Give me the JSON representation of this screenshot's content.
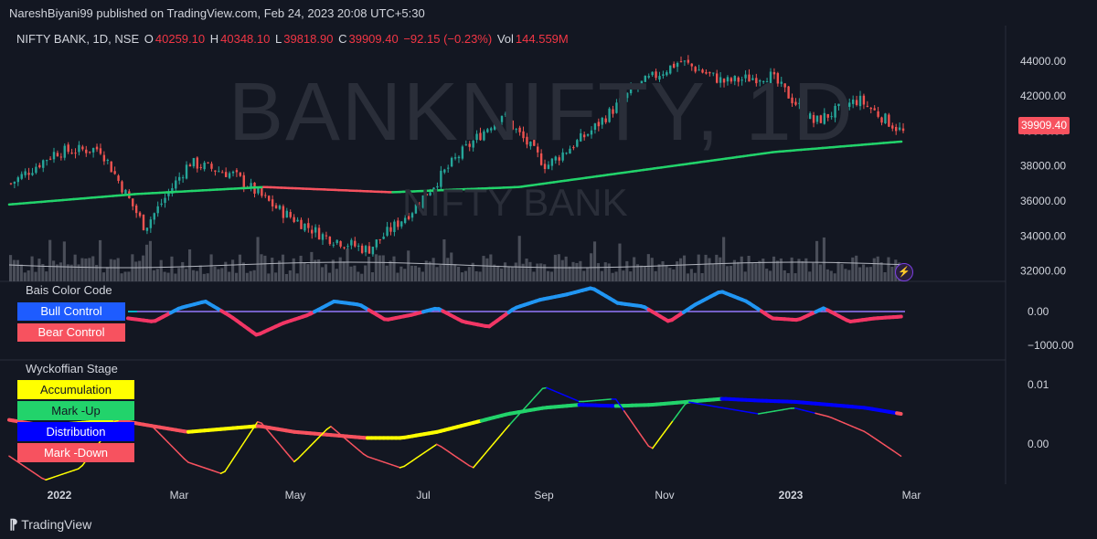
{
  "header": {
    "publish_text": "NareshBiyani99 published on TradingView.com, Feb 24, 2023 20:08 UTC+5:30"
  },
  "legend": {
    "symbol": "NIFTY BANK, 1D, NSE",
    "o_label": "O",
    "o_value": "40259.10",
    "h_label": "H",
    "h_value": "40348.10",
    "l_label": "L",
    "l_value": "39818.90",
    "c_label": "C",
    "c_value": "39909.40",
    "change": "−92.15 (−0.23%)",
    "vol_label": "Vol",
    "vol_value": "144.559M"
  },
  "watermark": {
    "main": "BANKNIFTY, 1D",
    "sub": "NIFTY BANK"
  },
  "price_badge": "39909.40",
  "panels": {
    "bias_title": "Bais Color Code",
    "bias_keys": [
      {
        "label": "Bull Control",
        "color": "#1e5cff",
        "text_color": "#ffffff"
      },
      {
        "label": "Bear Control",
        "color": "#f7525f",
        "text_color": "#ffffff"
      }
    ],
    "wyck_title": "Wyckoffian Stage",
    "wyck_keys": [
      {
        "label": "Accumulation",
        "color": "#ffff00",
        "text_color": "#131722"
      },
      {
        "label": "Mark -Up",
        "color": "#22d36b",
        "text_color": "#131722"
      },
      {
        "label": "Distribution",
        "color": "#0000ff",
        "text_color": "#ffffff"
      },
      {
        "label": "Mark -Down",
        "color": "#f7525f",
        "text_color": "#ffffff"
      }
    ]
  },
  "footer": {
    "brand": "TradingView"
  },
  "colors": {
    "up": "#26a69a",
    "down": "#ef5350",
    "bull": "#2196f3",
    "bear": "#f23665",
    "ma_up": "#22d36b",
    "ma_down": "#f7525f",
    "zero_line": "#e040fb",
    "cyan_line": "#00e5ff"
  },
  "chart_data": [
    {
      "type": "candlestick",
      "title": "NIFTY BANK, 1D, NSE",
      "x_ticks": [
        "2022",
        "Mar",
        "May",
        "Jul",
        "Sep",
        "Nov",
        "2023",
        "Mar"
      ],
      "y_ticks": [
        "44000.00",
        "42000.00",
        "40000.00",
        "38000.00",
        "36000.00",
        "34000.00",
        "32000.00"
      ],
      "ylim": [
        31300,
        45300
      ],
      "price_anchors": [
        {
          "x": "2022-01",
          "close": 37000
        },
        {
          "x": "2022-01-mid",
          "close": 38800
        },
        {
          "x": "2022-02",
          "close": 39000
        },
        {
          "x": "2022-03",
          "close": 34500
        },
        {
          "x": "2022-04",
          "close": 38200
        },
        {
          "x": "2022-04-end",
          "close": 37500
        },
        {
          "x": "2022-05",
          "close": 35500
        },
        {
          "x": "2022-06",
          "close": 34000
        },
        {
          "x": "2022-06-end",
          "close": 33200
        },
        {
          "x": "2022-07",
          "close": 35500
        },
        {
          "x": "2022-08",
          "close": 38500
        },
        {
          "x": "2022-09",
          "close": 41000
        },
        {
          "x": "2022-09-end",
          "close": 38000
        },
        {
          "x": "2022-10",
          "close": 40000
        },
        {
          "x": "2022-11",
          "close": 42500
        },
        {
          "x": "2022-12",
          "close": 44000
        },
        {
          "x": "2022-12-end",
          "close": 42800
        },
        {
          "x": "2023-01",
          "close": 43200
        },
        {
          "x": "2023-01-end",
          "close": 40500
        },
        {
          "x": "2023-02",
          "close": 41800
        },
        {
          "x": "2023-02-24",
          "close": 39909.4
        }
      ],
      "moving_average": [
        {
          "x": "2022-01",
          "value": 35800
        },
        {
          "x": "2022-03",
          "value": 36400
        },
        {
          "x": "2022-05",
          "value": 36800
        },
        {
          "x": "2022-07",
          "value": 36500
        },
        {
          "x": "2022-09",
          "value": 36800
        },
        {
          "x": "2022-11",
          "value": 37800
        },
        {
          "x": "2023-01",
          "value": 38800
        },
        {
          "x": "2023-02-24",
          "value": 39400
        }
      ],
      "last_close": 39909.4
    },
    {
      "type": "line",
      "title": "Bais Color Code",
      "y_ticks": [
        "0.00",
        "−1000.00"
      ],
      "series": [
        {
          "name": "Bias",
          "values": [
            -200,
            -300,
            100,
            300,
            -150,
            -700,
            -350,
            -100,
            300,
            200,
            -250,
            -100,
            100,
            -300,
            -450,
            100,
            350,
            500,
            700,
            250,
            150,
            -300,
            200,
            600,
            300,
            -200,
            -250,
            100,
            -300,
            -200,
            -150
          ]
        }
      ]
    },
    {
      "type": "line",
      "title": "Wyckoffian Stage",
      "y_ticks": [
        "0.01",
        "0.00"
      ],
      "series": [
        {
          "name": "Trend",
          "values": [
            0.004,
            0.003,
            0.0035,
            0.004,
            0.003,
            0.002,
            0.0025,
            0.003,
            0.002,
            0.0015,
            0.001,
            0.001,
            0.002,
            0.0035,
            0.005,
            0.006,
            0.0065,
            0.0063,
            0.0065,
            0.007,
            0.0075,
            0.0072,
            0.007,
            0.0065,
            0.006,
            0.005
          ]
        },
        {
          "name": "Signal",
          "values": [
            -0.002,
            -0.006,
            -0.004,
            0.004,
            0.003,
            -0.003,
            -0.005,
            0.004,
            -0.003,
            0.003,
            -0.002,
            -0.004,
            0.0,
            -0.004,
            0.003,
            0.0095,
            0.007,
            0.0075,
            -0.001,
            0.007,
            0.006,
            0.005,
            0.006,
            0.0045,
            0.002,
            -0.002
          ]
        }
      ]
    }
  ]
}
